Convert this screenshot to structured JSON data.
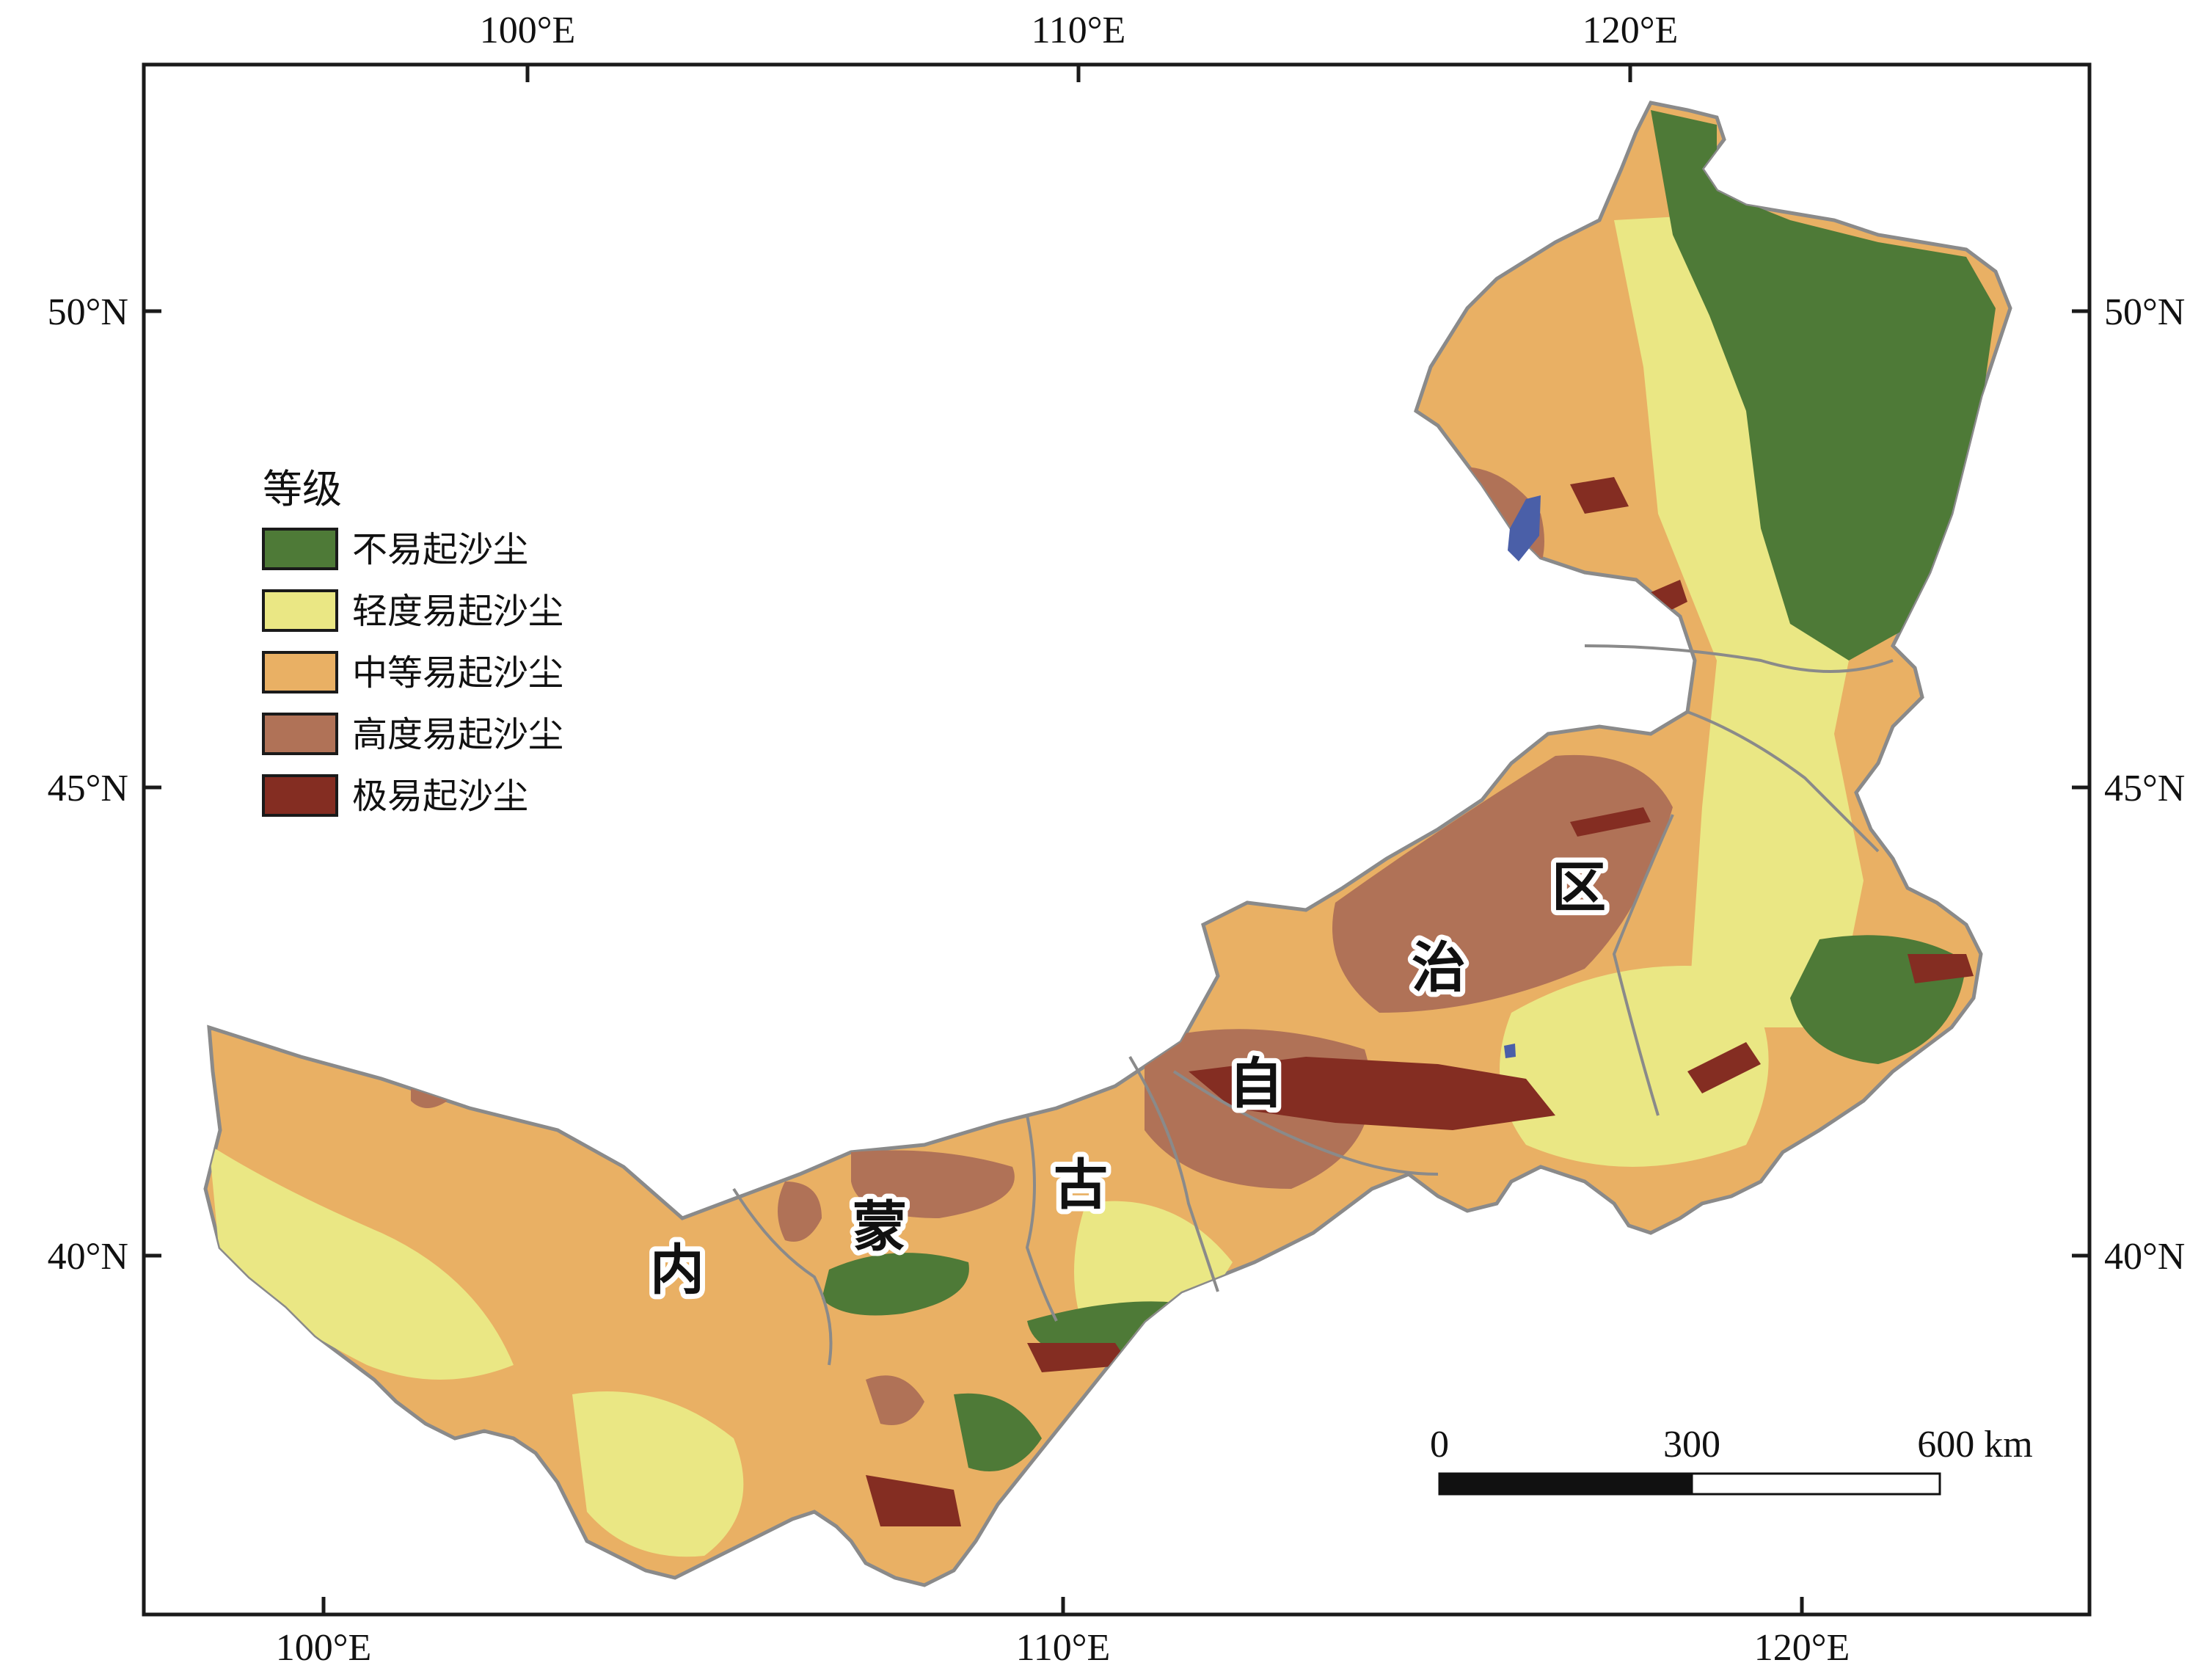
{
  "top_axis": {
    "labels": [
      "100°E",
      "110°E",
      "120°E"
    ]
  },
  "bottom_axis": {
    "labels": [
      "100°E",
      "110°E",
      "120°E"
    ]
  },
  "left_axis": {
    "labels": [
      "50°N",
      "45°N",
      "40°N"
    ]
  },
  "right_axis": {
    "labels": [
      "50°N",
      "45°N",
      "40°N"
    ]
  },
  "legend": {
    "title": "等级",
    "items": [
      {
        "label": "不易起沙尘",
        "color": "#4e7a37"
      },
      {
        "label": "轻度易起沙尘",
        "color": "#eae784"
      },
      {
        "label": "中等易起沙尘",
        "color": "#e9b064"
      },
      {
        "label": "高度易起沙尘",
        "color": "#b07257"
      },
      {
        "label": "极易起沙尘",
        "color": "#842d22"
      }
    ]
  },
  "region_chars": [
    "内",
    "蒙",
    "古",
    "自",
    "治",
    "区"
  ],
  "scale_bar": {
    "labels": [
      "0",
      "300",
      "600 km"
    ]
  },
  "colors": {
    "water": "#4a5fa8",
    "boundary": "#8a8a8a",
    "frame": "#1a1a1a"
  }
}
